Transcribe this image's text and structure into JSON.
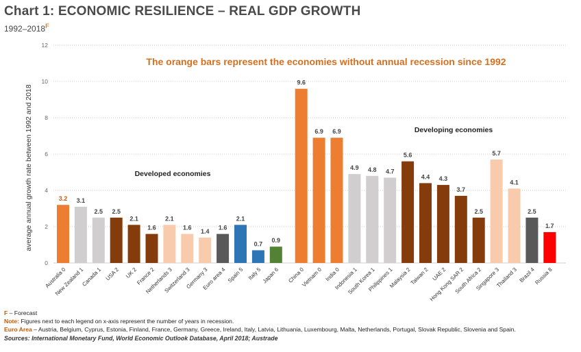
{
  "title": "Chart 1: ECONOMIC RESILIENCE – REAL GDP GROWTH",
  "subtitle": "1992–2018",
  "subtitle_mark": "F",
  "footnotes": {
    "forecast_key": "F",
    "forecast_text": " – Forecast",
    "note_label": "Note:",
    "note_text": " Figures next to each legend on x-axis represent the number of years in recession.",
    "euro_label": "Euro Area",
    "euro_text": " – Austria, Belgium, Cyprus, Estonia, Finland, France, Germany, Greece, Ireland, Italy, Latvia, Lithuania, Luxembourg, Malta, Netherlands, Portugal, Slovak Republic, Slovenia and Spain.",
    "sources": "Sources: International Monetary Fund, World Economic Outlook Database, April 2018; Austrade"
  },
  "chart_data": {
    "type": "bar",
    "ylabel": "average annual growth rate between 1992 and 2018",
    "ylim": [
      0,
      12
    ],
    "yticks": [
      0,
      2,
      4,
      6,
      8,
      10,
      12
    ],
    "grid": true,
    "annotations": {
      "headline": "The orange bars represent the economies without annual recession since 1992",
      "developed": "Developed economies",
      "developing": "Developing economies"
    },
    "colors": {
      "orange": "#ed7d31",
      "light_gray": "#d0cecf",
      "brown": "#843c0c",
      "peach": "#f8cbad",
      "dark_gray": "#595959",
      "blue": "#2e75b6",
      "green": "#548235",
      "red": "#ff0000",
      "highlight_label": "#c55a11"
    },
    "bars": [
      {
        "category": "Australia 0",
        "value": 3.2,
        "color": "orange",
        "highlight": true
      },
      {
        "category": "New Zealand 1",
        "value": 3.1,
        "color": "light_gray"
      },
      {
        "category": "Canada 1",
        "value": 2.5,
        "color": "light_gray"
      },
      {
        "category": "USA 2",
        "value": 2.5,
        "color": "brown"
      },
      {
        "category": "UK 2",
        "value": 2.1,
        "color": "brown"
      },
      {
        "category": "France 2",
        "value": 1.6,
        "color": "brown"
      },
      {
        "category": "Netherlands 3",
        "value": 2.1,
        "color": "peach"
      },
      {
        "category": "Switzerland 3",
        "value": 1.6,
        "color": "peach"
      },
      {
        "category": "Germany 3",
        "value": 1.4,
        "color": "peach"
      },
      {
        "category": "Euro area 4",
        "value": 1.6,
        "color": "dark_gray"
      },
      {
        "category": "Spain 5",
        "value": 2.1,
        "color": "blue"
      },
      {
        "category": "Italy 5",
        "value": 0.7,
        "color": "blue"
      },
      {
        "category": "Japan 6",
        "value": 0.9,
        "color": "green"
      },
      {
        "category": "China 0",
        "value": 9.6,
        "color": "orange",
        "gap_before": true
      },
      {
        "category": "Vietnam 0",
        "value": 6.9,
        "color": "orange"
      },
      {
        "category": "India 0",
        "value": 6.9,
        "color": "orange"
      },
      {
        "category": "Indonesia 1",
        "value": 4.9,
        "color": "light_gray"
      },
      {
        "category": "South Korea 1",
        "value": 4.8,
        "color": "light_gray"
      },
      {
        "category": "Philippines 1",
        "value": 4.7,
        "color": "light_gray"
      },
      {
        "category": "Malaysia 2",
        "value": 5.6,
        "color": "brown"
      },
      {
        "category": "Taiwan 2",
        "value": 4.4,
        "color": "brown"
      },
      {
        "category": "UAE 2",
        "value": 4.3,
        "color": "brown"
      },
      {
        "category": "Hong Kong SAR 2",
        "value": 3.7,
        "color": "brown"
      },
      {
        "category": "South Africa 2",
        "value": 2.5,
        "color": "brown"
      },
      {
        "category": "Singapore 3",
        "value": 5.7,
        "color": "peach"
      },
      {
        "category": "Thailand 3",
        "value": 4.1,
        "color": "peach"
      },
      {
        "category": "Brazil 4",
        "value": 2.5,
        "color": "dark_gray"
      },
      {
        "category": "Russia 8",
        "value": 1.7,
        "color": "red"
      }
    ]
  }
}
